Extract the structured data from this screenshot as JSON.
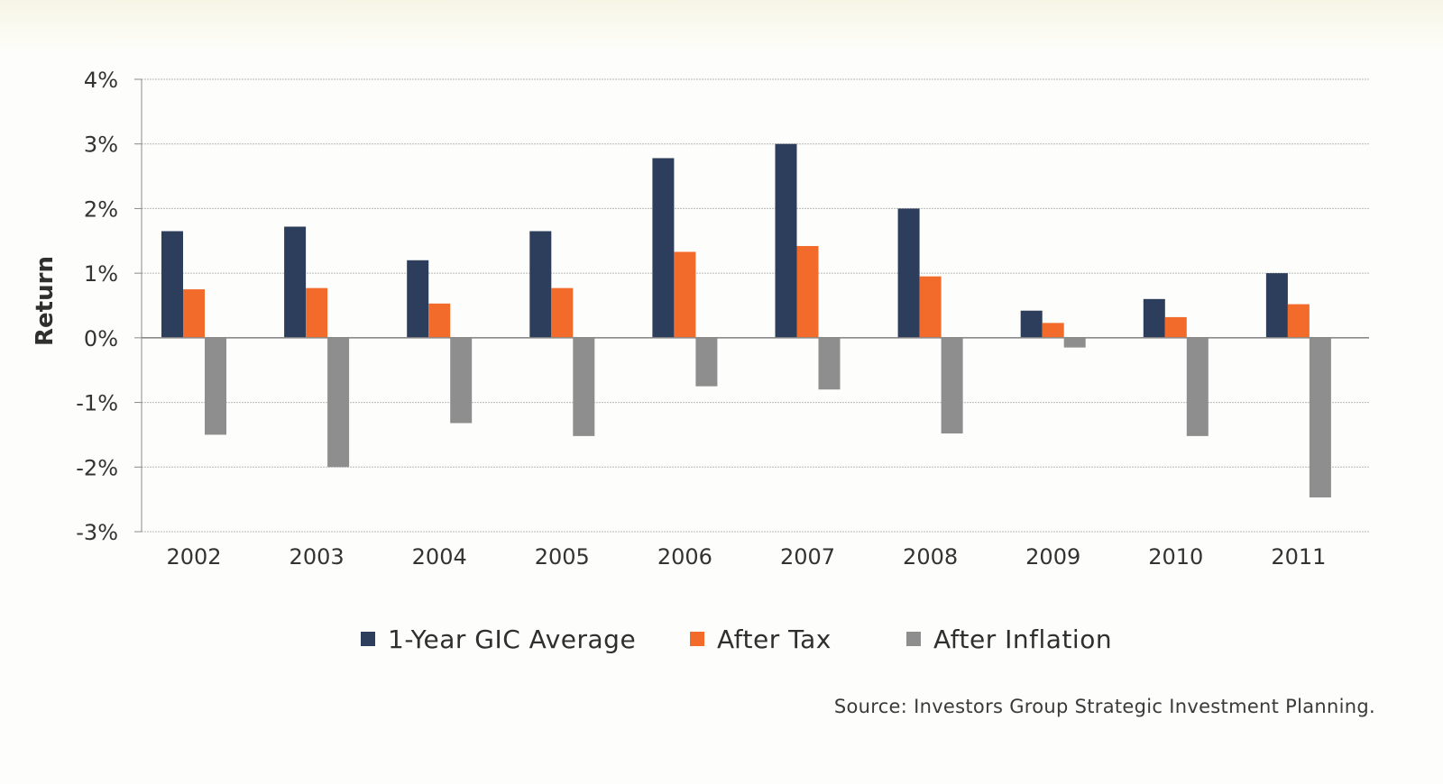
{
  "chart_data": {
    "type": "bar",
    "ylabel": "Return",
    "xlabel": "",
    "ylim": [
      -3,
      4
    ],
    "yticks": [
      4,
      3,
      2,
      1,
      0,
      -1,
      -2,
      -3
    ],
    "ytick_labels": [
      "4%",
      "3%",
      "2%",
      "1%",
      "0%",
      "-1%",
      "-2%",
      "-3%"
    ],
    "grid": true,
    "legend_position": "bottom-center",
    "categories": [
      "2002",
      "2003",
      "2004",
      "2005",
      "2006",
      "2007",
      "2008",
      "2009",
      "2010",
      "2011"
    ],
    "series": [
      {
        "name": "1-Year GIC Average",
        "color": "#2c3e5c",
        "values": [
          1.65,
          1.72,
          1.2,
          1.65,
          2.78,
          3.0,
          2.0,
          0.42,
          0.6,
          1.0
        ]
      },
      {
        "name": "After Tax",
        "color": "#f36b2b",
        "values": [
          0.75,
          0.77,
          0.53,
          0.77,
          1.33,
          1.42,
          0.95,
          0.23,
          0.32,
          0.52
        ]
      },
      {
        "name": "After Inflation",
        "color": "#8e8e8e",
        "values": [
          -1.5,
          -2.0,
          -1.32,
          -1.52,
          -0.75,
          -0.8,
          -1.48,
          -0.15,
          -1.52,
          -2.47
        ]
      }
    ]
  },
  "legend": {
    "items": [
      "1-Year GIC Average",
      "After Tax",
      "After Inflation"
    ]
  },
  "source": "Source: Investors Group Strategic Investment Planning."
}
